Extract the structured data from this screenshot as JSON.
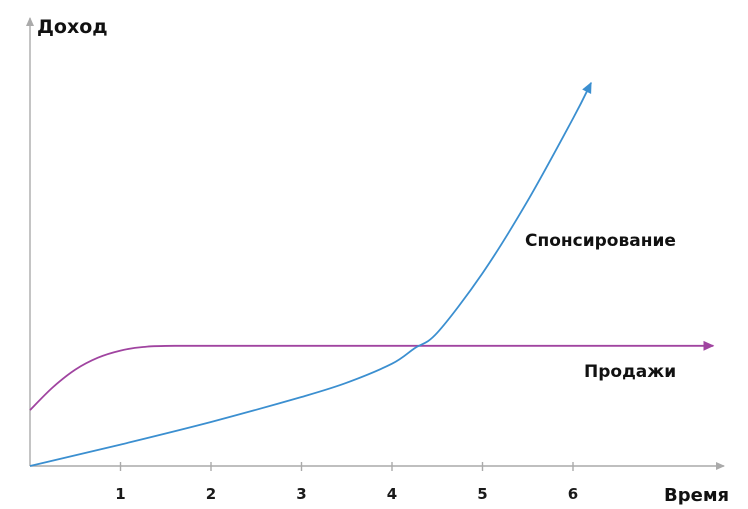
{
  "chart_data": {
    "type": "line",
    "xlabel": "Время",
    "ylabel": "Доход",
    "x_ticks": [
      "1",
      "2",
      "3",
      "4",
      "5",
      "6"
    ],
    "xlim": [
      0,
      7.7
    ],
    "ylim": [
      0,
      4
    ],
    "grid": false,
    "legend": "none",
    "series": [
      {
        "name": "Спонсирование",
        "color": "#3b8fd0",
        "x": [
          0,
          1,
          2,
          3,
          3.5,
          4,
          4.25,
          4.5,
          5,
          5.5,
          6,
          6.2
        ],
        "y": [
          0,
          0.18,
          0.37,
          0.58,
          0.7,
          0.86,
          0.99,
          1.12,
          1.62,
          2.23,
          2.92,
          3.22
        ]
      },
      {
        "name": "Продажи",
        "color": "#a044a0",
        "x": [
          0,
          0.25,
          0.5,
          0.75,
          1,
          1.25,
          1.6,
          3,
          5,
          7,
          7.55
        ],
        "y": [
          0.47,
          0.66,
          0.81,
          0.91,
          0.97,
          1.0,
          1.01,
          1.01,
          1.01,
          1.01,
          1.01
        ]
      }
    ]
  }
}
